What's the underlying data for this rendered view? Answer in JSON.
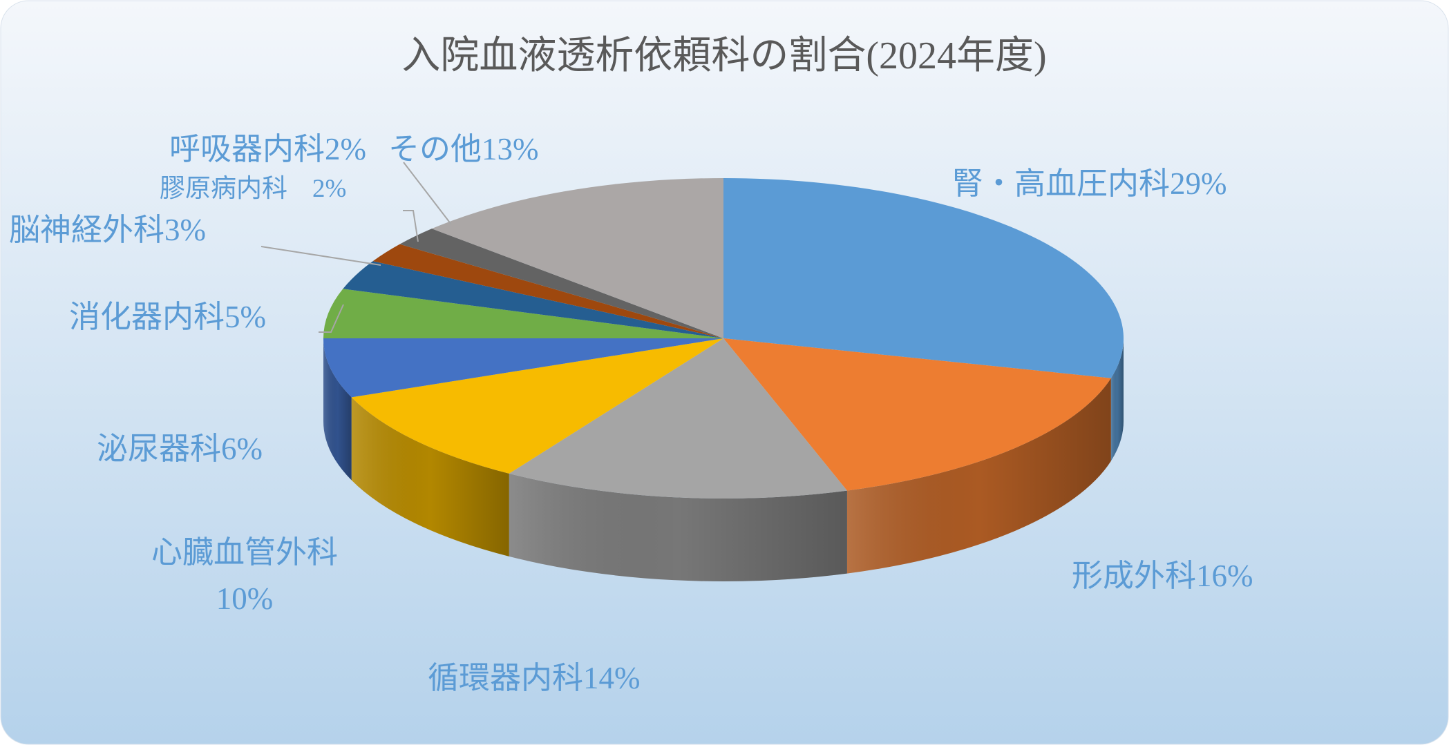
{
  "chart_data": {
    "type": "pie",
    "title": "入院血液透析依頼科の割合(2024年度)",
    "categories": [
      "腎・高血圧内科",
      "形成外科",
      "循環器内科",
      "心臓血管外科",
      "泌尿器科",
      "消化器内科",
      "脳神経外科",
      "膠原病内科",
      "呼吸器内科",
      "その他"
    ],
    "values": [
      29,
      16,
      14,
      10,
      6,
      5,
      3,
      2,
      2,
      13
    ],
    "value_labels": [
      "29%",
      "16%",
      "14%",
      "10%",
      "6%",
      "5%",
      "3%",
      "2%",
      "2%",
      "13%"
    ],
    "colors": [
      "#5b9bd5",
      "#ed7d31",
      "#a5a5a5",
      "#f7bb00",
      "#4472c4",
      "#70ad47",
      "#255e91",
      "#9e480e",
      "#636363",
      "#aba7a6"
    ]
  }
}
